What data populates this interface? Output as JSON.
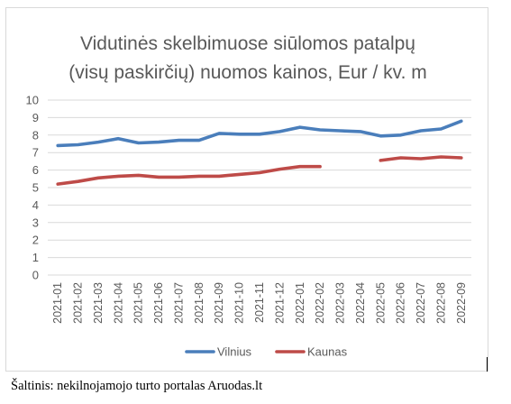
{
  "chart_data": {
    "type": "line",
    "title": [
      "Vidutinės skelbimuose siūlomos patalpų",
      "(visų paskirčių) nuomos kainos, Eur / kv. m"
    ],
    "xlabel": "",
    "ylabel": "",
    "ylim": [
      0,
      10
    ],
    "yticks": [
      "0",
      "1",
      "2",
      "3",
      "4",
      "5",
      "6",
      "7",
      "8",
      "9",
      "10"
    ],
    "categories": [
      "2021-01",
      "2021-02",
      "2021-03",
      "2021-04",
      "2021-05",
      "2021-06",
      "2021-07",
      "2021-08",
      "2021-09",
      "2021-10",
      "2021-11",
      "2021-12",
      "2022-01",
      "2022-02",
      "2022-03",
      "2022-04",
      "2022-05",
      "2022-06",
      "2022-07",
      "2022-08",
      "2022-09"
    ],
    "grid": true,
    "legend_position": "bottom",
    "series": [
      {
        "name": "Vilnius",
        "color": "#4a7ebb",
        "values": [
          7.4,
          7.45,
          7.6,
          7.8,
          7.55,
          7.6,
          7.7,
          7.7,
          8.1,
          8.05,
          8.05,
          8.2,
          8.45,
          8.3,
          8.25,
          8.2,
          7.95,
          8.0,
          8.25,
          8.35,
          8.8
        ]
      },
      {
        "name": "Kaunas",
        "color": "#be4b48",
        "values": [
          5.2,
          5.35,
          5.55,
          5.65,
          5.7,
          5.6,
          5.6,
          5.65,
          5.65,
          5.75,
          5.85,
          6.05,
          6.2,
          6.2,
          null,
          null,
          6.55,
          6.7,
          6.65,
          6.75,
          6.7
        ]
      }
    ]
  },
  "source_note": "Šaltinis: nekilnojamojo turto portalas Aruodas.lt"
}
